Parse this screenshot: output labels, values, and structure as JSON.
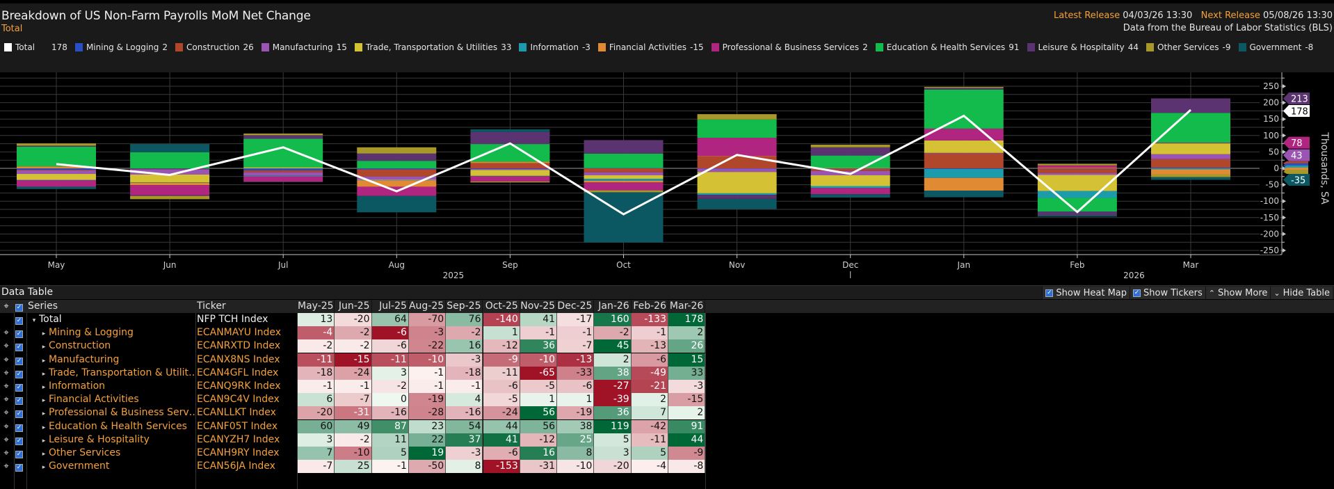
{
  "header": {
    "title": "Breakdown of US Non-Farm Payrolls MoM Net Change",
    "subtitle": "Total",
    "latest_release_label": "Latest Release",
    "latest_release_value": "04/03/26 13:30",
    "next_release_label": "Next Release",
    "next_release_value": "05/08/26 13:30",
    "source": "Data from the Bureau of Labor Statistics (BLS)"
  },
  "legend": [
    {
      "name": "Total",
      "value": "178",
      "color": "#ffffff"
    },
    {
      "name": "Mining & Logging",
      "value": "2",
      "color": "#2a4fc4"
    },
    {
      "name": "Construction",
      "value": "26",
      "color": "#b1472a"
    },
    {
      "name": "Manufacturing",
      "value": "15",
      "color": "#9a55b4"
    },
    {
      "name": "Trade, Transportation & Utilities",
      "value": "33",
      "color": "#d4c234"
    },
    {
      "name": "Information",
      "value": "-3",
      "color": "#1b9bab"
    },
    {
      "name": "Financial Activities",
      "value": "-15",
      "color": "#e08a33"
    },
    {
      "name": "Professional & Business Services",
      "value": "2",
      "color": "#b02580"
    },
    {
      "name": "Education & Health Services",
      "value": "91",
      "color": "#13bb4c"
    },
    {
      "name": "Leisure & Hospitality",
      "value": "44",
      "color": "#5b3370"
    },
    {
      "name": "Other Services",
      "value": "-9",
      "color": "#a8982a"
    },
    {
      "name": "Government",
      "value": "-8",
      "color": "#0b5862"
    }
  ],
  "chart_data": {
    "type": "bar",
    "subtype": "stacked-bar-with-line",
    "title": "Breakdown of US Non-Farm Payrolls MoM Net Change",
    "ylabel": "Thousands, SA",
    "xlabel": "",
    "ylim": [
      -250,
      250
    ],
    "yticks": [
      250,
      200,
      150,
      100,
      50,
      0,
      -50,
      -100,
      -150,
      -200,
      -250
    ],
    "ytick_labels": [
      "250",
      "200",
      "150",
      "100",
      "50",
      "0",
      "-50",
      "-100",
      "-150",
      "-200",
      "-250"
    ],
    "categories": [
      "May",
      "Jun",
      "Jul",
      "Aug",
      "Sep",
      "Oct",
      "Nov",
      "Dec",
      "Jan",
      "Feb",
      "Mar"
    ],
    "year_labels": [
      {
        "label": "2025",
        "after": "Aug"
      },
      {
        "label": "2026",
        "after": "Feb"
      }
    ],
    "grid": true,
    "legend_position": "top",
    "line_series": {
      "name": "Total",
      "color": "#ffffff",
      "values": [
        13,
        -20,
        64,
        -70,
        76,
        -140,
        41,
        -17,
        160,
        -133,
        178
      ]
    },
    "series": [
      {
        "name": "Mining & Logging",
        "color": "#2a4fc4",
        "values": [
          -4,
          -2,
          -6,
          -3,
          -2,
          1,
          -1,
          -1,
          -2,
          -1,
          2
        ]
      },
      {
        "name": "Construction",
        "color": "#b1472a",
        "values": [
          -2,
          -2,
          -6,
          -22,
          16,
          -12,
          36,
          -7,
          45,
          -13,
          26
        ]
      },
      {
        "name": "Manufacturing",
        "color": "#9a55b4",
        "values": [
          -11,
          -15,
          -11,
          -10,
          -3,
          -9,
          -10,
          -13,
          2,
          -6,
          15
        ]
      },
      {
        "name": "Trade, Transportation & Utilities",
        "color": "#d4c234",
        "values": [
          -18,
          -24,
          3,
          -1,
          -18,
          -11,
          -65,
          -33,
          38,
          -49,
          33
        ]
      },
      {
        "name": "Information",
        "color": "#1b9bab",
        "values": [
          -1,
          -1,
          -2,
          -1,
          -1,
          -6,
          -5,
          -6,
          -27,
          -21,
          -3
        ]
      },
      {
        "name": "Financial Activities",
        "color": "#e08a33",
        "values": [
          6,
          -7,
          0,
          -19,
          4,
          -5,
          1,
          1,
          -39,
          2,
          -15
        ]
      },
      {
        "name": "Professional & Business Services",
        "color": "#b02580",
        "values": [
          -20,
          -31,
          -16,
          -28,
          -16,
          -24,
          56,
          -19,
          36,
          7,
          2
        ]
      },
      {
        "name": "Education & Health Services",
        "color": "#13bb4c",
        "values": [
          60,
          49,
          87,
          23,
          54,
          44,
          56,
          38,
          119,
          -42,
          91
        ]
      },
      {
        "name": "Leisure & Hospitality",
        "color": "#5b3370",
        "values": [
          3,
          -2,
          11,
          22,
          37,
          41,
          -12,
          25,
          5,
          -11,
          44
        ]
      },
      {
        "name": "Other Services",
        "color": "#a8982a",
        "values": [
          7,
          -10,
          5,
          19,
          -3,
          -6,
          16,
          8,
          3,
          5,
          -9
        ]
      },
      {
        "name": "Government",
        "color": "#0b5862",
        "values": [
          -7,
          25,
          -1,
          -50,
          8,
          -153,
          -31,
          -10,
          -20,
          -4,
          -8
        ]
      }
    ],
    "right_tags": [
      {
        "label": "213",
        "value": 213,
        "color": "#5b3370"
      },
      {
        "label": "178",
        "value": 178,
        "color": "#ffffff"
      },
      {
        "label": "78",
        "value": 78,
        "color": "#b02580"
      },
      {
        "label": "43",
        "value": 43,
        "color": "#9a55b4"
      },
      {
        "label": "-35",
        "value": -35,
        "color": "#0b5862"
      }
    ]
  },
  "data_table": {
    "title": "Data Table",
    "controls": {
      "heatmap_label": "Show Heat Map",
      "tickers_label": "Show Tickers",
      "more_label": "Show More",
      "hide_label": "Hide Table"
    },
    "columns": {
      "series": "Series",
      "ticker": "Ticker",
      "months": [
        "May-25",
        "Jun-25",
        "Jul-25",
        "Aug-25",
        "Sep-25",
        "Oct-25",
        "Nov-25",
        "Dec-25",
        "Jan-26",
        "Feb-26",
        "Mar-26"
      ]
    },
    "rows": [
      {
        "series": "Total",
        "ticker": "NFP TCH Index",
        "level": 0,
        "values": [
          13,
          -20,
          64,
          -70,
          76,
          -140,
          41,
          -17,
          160,
          -133,
          178
        ]
      },
      {
        "series": "Mining & Logging",
        "ticker": "ECANMAYU Index",
        "level": 1,
        "values": [
          -4,
          -2,
          -6,
          -3,
          -2,
          1,
          -1,
          -1,
          -2,
          -1,
          2
        ]
      },
      {
        "series": "Construction",
        "ticker": "ECANRXTD Index",
        "level": 1,
        "values": [
          -2,
          -2,
          -6,
          -22,
          16,
          -12,
          36,
          -7,
          45,
          -13,
          26
        ]
      },
      {
        "series": "Manufacturing",
        "ticker": "ECANX8NS Index",
        "level": 1,
        "values": [
          -11,
          -15,
          -11,
          -10,
          -3,
          -9,
          -10,
          -13,
          2,
          -6,
          15
        ]
      },
      {
        "series": "Trade, Transportation & Utilit…",
        "ticker": "ECAN4GFL Index",
        "level": 1,
        "values": [
          -18,
          -24,
          3,
          -1,
          -18,
          -11,
          -65,
          -33,
          38,
          -49,
          33
        ]
      },
      {
        "series": "Information",
        "ticker": "ECANQ9RK Index",
        "level": 1,
        "values": [
          -1,
          -1,
          -2,
          -1,
          -1,
          -6,
          -5,
          -6,
          -27,
          -21,
          -3
        ]
      },
      {
        "series": "Financial Activities",
        "ticker": "ECAN9C4V Index",
        "level": 1,
        "values": [
          6,
          -7,
          0,
          -19,
          4,
          -5,
          1,
          1,
          -39,
          2,
          -15
        ]
      },
      {
        "series": "Professional & Business Serv…",
        "ticker": "ECANLLKT Index",
        "level": 1,
        "values": [
          -20,
          -31,
          -16,
          -28,
          -16,
          -24,
          56,
          -19,
          36,
          7,
          2
        ]
      },
      {
        "series": "Education & Health Services",
        "ticker": "ECANF05T Index",
        "level": 1,
        "values": [
          60,
          49,
          87,
          23,
          54,
          44,
          56,
          38,
          119,
          -42,
          91
        ]
      },
      {
        "series": "Leisure & Hospitality",
        "ticker": "ECANYZH7 Index",
        "level": 1,
        "values": [
          3,
          -2,
          11,
          22,
          37,
          41,
          -12,
          25,
          5,
          -11,
          44
        ]
      },
      {
        "series": "Other Services",
        "ticker": "ECANH9RY Index",
        "level": 1,
        "values": [
          7,
          -10,
          5,
          19,
          -3,
          -6,
          16,
          8,
          3,
          5,
          -9
        ]
      },
      {
        "series": "Government",
        "ticker": "ECAN56JA Index",
        "level": 1,
        "values": [
          -7,
          25,
          -1,
          -50,
          8,
          -153,
          -31,
          -10,
          -20,
          -4,
          -8
        ]
      }
    ]
  }
}
